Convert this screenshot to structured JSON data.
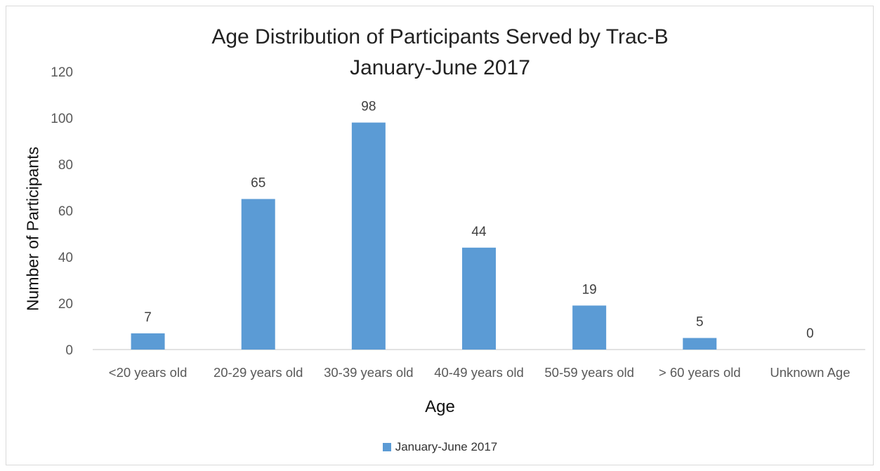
{
  "chart_data": {
    "type": "bar",
    "title": "Age Distribution of Participants Served by Trac-B",
    "subtitle": "January-June 2017",
    "xlabel": "Age",
    "ylabel": "Number of Participants",
    "categories": [
      "<20 years old",
      "20-29 years old",
      "30-39 years old",
      "40-49 years old",
      "50-59 years old",
      "> 60 years old",
      "Unknown Age"
    ],
    "series": [
      {
        "name": "January-June 2017",
        "values": [
          7,
          65,
          98,
          44,
          19,
          5,
          0
        ]
      }
    ],
    "ylim": [
      0,
      120
    ],
    "yticks": [
      "0",
      "20",
      "40",
      "60",
      "80",
      "100",
      "120"
    ],
    "grid": false,
    "legend": "bottom",
    "colors": {
      "bar": "#5b9bd5",
      "axis": "#d9d9d9"
    }
  }
}
